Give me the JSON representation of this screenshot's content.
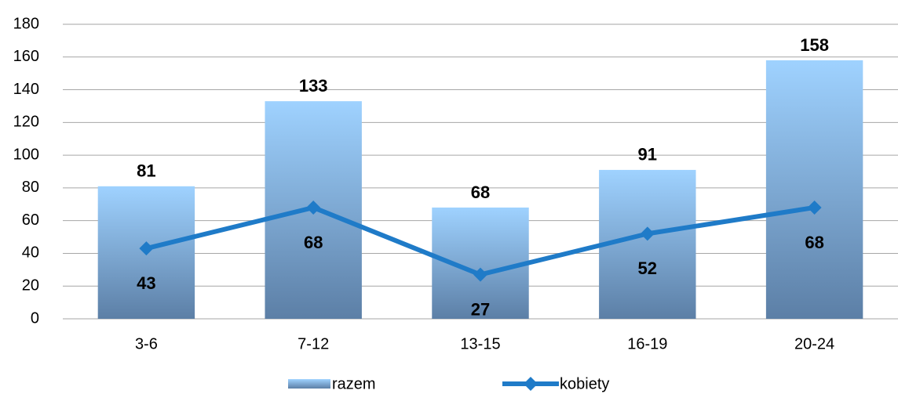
{
  "chart_data": {
    "type": "bar",
    "categories": [
      "3-6",
      "7-12",
      "13-15",
      "16-19",
      "20-24"
    ],
    "series": [
      {
        "name": "razem",
        "type": "bar",
        "color": "#8ec5f5",
        "values": [
          81,
          133,
          68,
          91,
          158
        ]
      },
      {
        "name": "kobiety",
        "type": "line",
        "color": "#1f7bc8",
        "values": [
          43,
          68,
          27,
          52,
          68
        ]
      }
    ],
    "ylim": [
      0,
      180
    ],
    "yticks": [
      0,
      20,
      40,
      60,
      80,
      100,
      120,
      140,
      160,
      180
    ],
    "grid": true
  }
}
